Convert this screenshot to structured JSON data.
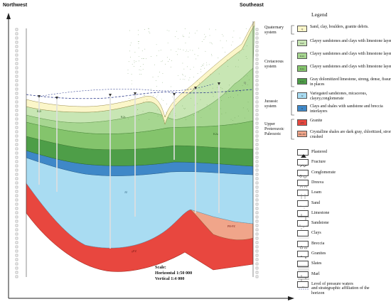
{
  "orientation": {
    "left": "Northwest",
    "right": "Southeast"
  },
  "legend": {
    "title": "Legend",
    "systems": [
      {
        "name": "Quaternary\nsystem"
      },
      {
        "name": "Cretaceous\nsystem"
      },
      {
        "name": "Jurassic\nsystem"
      },
      {
        "name": "Upper\nProterozoic\nPaleozoic"
      }
    ],
    "units": [
      {
        "code": "Q",
        "color": "#fbf6c9",
        "text": "Sand, clay, boulders, granite debris."
      },
      {
        "code": "K2t",
        "color": "#c8e6b4",
        "text": "Clayey sandstones and clays with limestone layers"
      },
      {
        "code": "K2s",
        "color": "#a6d690",
        "text": "Clayey sandstones and clays with limestone layers"
      },
      {
        "code": "K2a",
        "color": "#84c46c",
        "text": "Clayey sandstones and clays with limestone layers"
      },
      {
        "code": "K1a",
        "color": "#4e9e48",
        "text": "Gray dolomitized limestone, strong, dense, fissured in places"
      },
      {
        "code": "J2",
        "color": "#a9dcf2",
        "text": "Variegated sandstones, micaceous, clayey,conglomerate"
      },
      {
        "code": "J1",
        "color": "#3f88c8",
        "text": "Clays and shales with sandstone and breccia interlayers"
      },
      {
        "code": "γPZ",
        "color": "#e8473f",
        "text": "Granite"
      },
      {
        "code": "PR-PZ",
        "color": "#f0a58a",
        "text": "Crystalline shales are dark gray, chloritized, strongly crushed"
      }
    ],
    "symbols": [
      {
        "name": "plastered-icon",
        "label": "Plastered"
      },
      {
        "name": "fracture-icon",
        "label": "Fracture"
      },
      {
        "name": "conglomerate-icon",
        "label": "Conglomerate"
      },
      {
        "name": "dresva-icon",
        "label": "Dresva"
      },
      {
        "name": "loam-icon",
        "label": "Loam"
      },
      {
        "name": "sand-icon",
        "label": "Sand"
      },
      {
        "name": "limestone-icon",
        "label": "Limestone"
      },
      {
        "name": "sandstone-icon",
        "label": "Sandstone"
      },
      {
        "name": "clays-icon",
        "label": "Clays"
      },
      {
        "name": "breccia-icon",
        "label": "Breccia"
      },
      {
        "name": "granites-icon",
        "label": "Granites"
      },
      {
        "name": "slates-icon",
        "label": "Slates"
      },
      {
        "name": "marl-icon",
        "label": "Marl"
      },
      {
        "name": "pressure-water-icon",
        "label": "Level of pressure waters\nand strategraphic affiliation of the\nhorizon"
      }
    ]
  },
  "scale": {
    "heading": "Scale:",
    "horizontal": "Horizontal 1:50 000",
    "vertical": "Vertical 1:4 000"
  },
  "layer_labels": [
    {
      "text": "K2t",
      "color": "#2b5a22"
    },
    {
      "text": "K2s",
      "color": "#2b5a22"
    },
    {
      "text": "K2a",
      "color": "#2b5a22"
    },
    {
      "text": "J2",
      "color": "#2a5e7a"
    },
    {
      "text": "γPZ",
      "color": "#7a1a14"
    },
    {
      "text": "PR-PZ",
      "color": "#7a1a14"
    },
    {
      "text": "Q",
      "color": "#555"
    }
  ]
}
